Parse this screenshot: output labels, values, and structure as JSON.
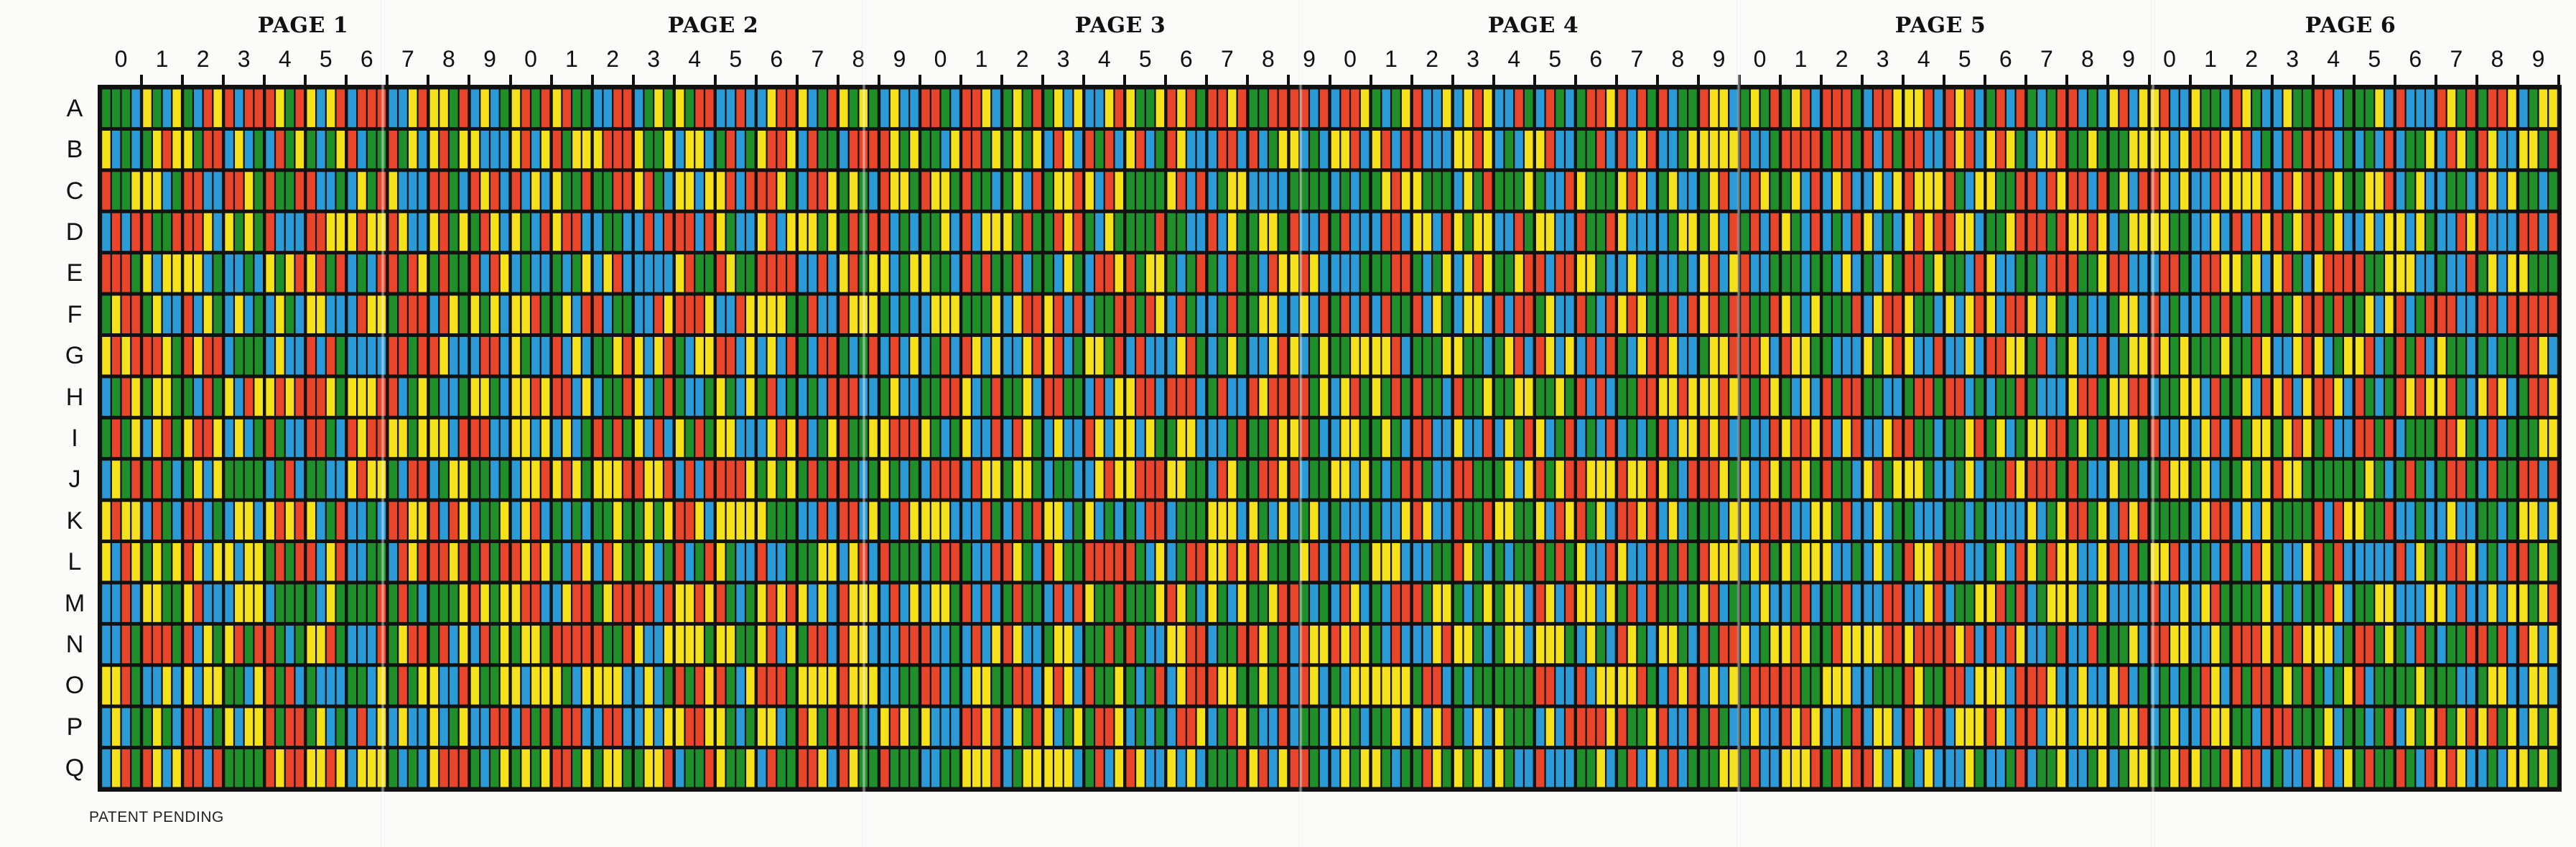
{
  "page_titles": [
    "PAGE 1",
    "PAGE 2",
    "PAGE 3",
    "PAGE 4",
    "PAGE 5",
    "PAGE 6"
  ],
  "column_labels": [
    "0",
    "1",
    "2",
    "3",
    "4",
    "5",
    "6",
    "7",
    "8",
    "9",
    "0",
    "1",
    "2",
    "3",
    "4",
    "5",
    "6",
    "7",
    "8",
    "9",
    "0",
    "1",
    "2",
    "3",
    "4",
    "5",
    "6",
    "7",
    "8",
    "9",
    "0",
    "1",
    "2",
    "3",
    "4",
    "5",
    "6",
    "7",
    "8",
    "9",
    "0",
    "1",
    "2",
    "3",
    "4",
    "5",
    "6",
    "7",
    "8",
    "9",
    "0",
    "1",
    "2",
    "3",
    "4",
    "5",
    "6",
    "7",
    "8",
    "9"
  ],
  "row_labels": [
    "A",
    "B",
    "C",
    "D",
    "E",
    "F",
    "G",
    "H",
    "I",
    "J",
    "K",
    "L",
    "M",
    "N",
    "O",
    "P",
    "Q"
  ],
  "footer": {
    "note": "PATENT PENDING"
  },
  "colors": {
    "green": "#1f8f2a",
    "blue": "#2a9bd6",
    "yellow": "#f6e21a",
    "red": "#e8452a",
    "grid_line": "#111111",
    "paper": "#fbfbfa"
  },
  "icons": {
    "fold_marks": "paper-fold-crease"
  }
}
